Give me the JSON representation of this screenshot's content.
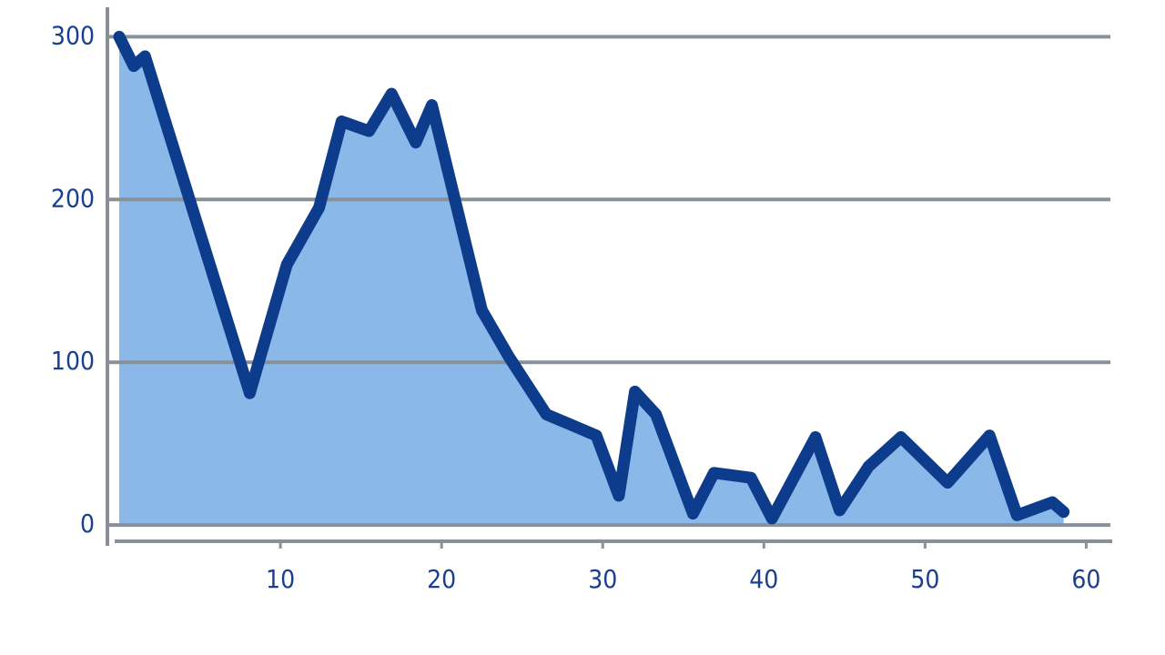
{
  "chart_data": {
    "type": "area",
    "x": [
      0,
      0.9,
      1.6,
      8.1,
      10.4,
      12.4,
      13.8,
      15.5,
      16.9,
      18.4,
      19.4,
      22.5,
      24.2,
      26.5,
      29.6,
      31,
      32,
      33.3,
      35.6,
      36.9,
      39.2,
      40.5,
      43.2,
      44.7,
      46.5,
      48.5,
      51.4,
      54,
      55.7,
      57.9,
      58.6
    ],
    "values": [
      300,
      282,
      288,
      81,
      160,
      195,
      248,
      242,
      265,
      235,
      258,
      132,
      103,
      68,
      55,
      18,
      82,
      68,
      7,
      32,
      29,
      4,
      54,
      9,
      36,
      54,
      26,
      55,
      6,
      14,
      8
    ],
    "color": "#0d3c8c",
    "fill_color": "#8ab8e8",
    "xlim": [
      0,
      61.5
    ],
    "ylim": [
      -10,
      317
    ],
    "xticks": [
      10,
      20,
      30,
      40,
      50,
      60
    ],
    "yticks": [
      0,
      100,
      200,
      300
    ],
    "grid": true
  }
}
